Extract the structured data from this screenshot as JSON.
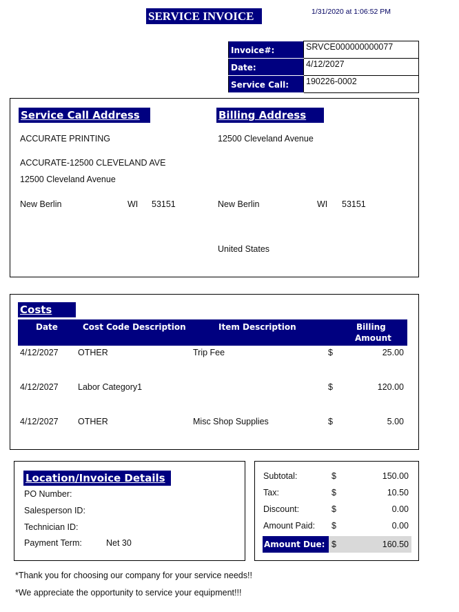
{
  "header": {
    "title": "SERVICE INVOICE",
    "timestamp": "1/31/2020 at 1:06:52 PM"
  },
  "invoice_info": [
    {
      "label": "Invoice#:",
      "value": "SRVCE000000000077"
    },
    {
      "label": "Date:",
      "value": "4/12/2027"
    },
    {
      "label": "Service Call:",
      "value": "190226-0002"
    }
  ],
  "service_address": {
    "heading": "Service Call Address",
    "name": "ACCURATE PRINTING",
    "line1": "ACCURATE-12500 CLEVELAND AVE",
    "line2": "12500 Cleveland Avenue",
    "city": "New Berlin",
    "state": "WI",
    "zip": "53151"
  },
  "billing_address": {
    "heading": "Billing Address",
    "line1": "12500 Cleveland Avenue",
    "city": "New Berlin",
    "state": "WI",
    "zip": "53151",
    "country": "United States"
  },
  "costs": {
    "heading": "Costs",
    "columns": [
      "Date",
      "Cost Code Description",
      "Item Description",
      "Billing",
      "Amount"
    ],
    "rows": [
      {
        "date": "4/12/2027",
        "code": "OTHER",
        "item": "Trip Fee",
        "cur": "$",
        "amount": "25.00"
      },
      {
        "date": "4/12/2027",
        "code": "Labor Category1",
        "item": "",
        "cur": "$",
        "amount": "120.00"
      },
      {
        "date": "4/12/2027",
        "code": "OTHER",
        "item": "Misc Shop Supplies",
        "cur": "$",
        "amount": "5.00"
      }
    ]
  },
  "details": {
    "heading": "Location/Invoice Details",
    "po_label": "PO Number:",
    "salesperson_label": "Salesperson ID:",
    "technician_label": "Technician ID:",
    "payment_label": "Payment Term:",
    "payment_value": "Net 30"
  },
  "totals": [
    {
      "label": "Subtotal:",
      "cur": "$",
      "value": "150.00"
    },
    {
      "label": "Tax:",
      "cur": "$",
      "value": "10.50"
    },
    {
      "label": "Discount:",
      "cur": "$",
      "value": "0.00"
    },
    {
      "label": "Amount Paid:",
      "cur": "$",
      "value": "0.00"
    },
    {
      "label": "Amount Due:",
      "cur": "$",
      "value": "160.50"
    }
  ],
  "footer": [
    "*Thank you for choosing our company for your service needs!!",
    "*We appreciate the opportunity to service your equipment!!!"
  ]
}
